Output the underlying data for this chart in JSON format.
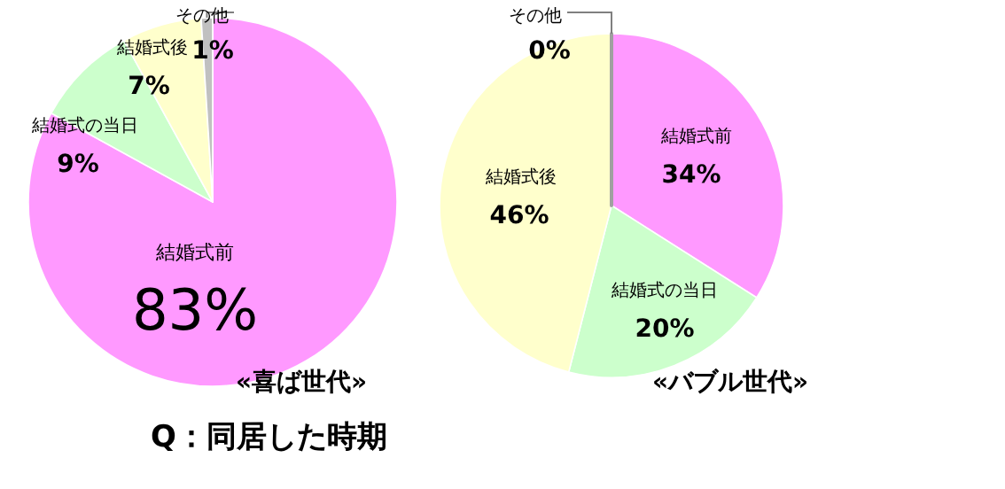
{
  "chart_data": [
    {
      "type": "pie",
      "title": "«喜ば世代»",
      "categories": [
        "結婚式前",
        "結婚式の当日",
        "結婚式後",
        "その他"
      ],
      "values": [
        83,
        9,
        7,
        1
      ],
      "value_labels": [
        "83%",
        "9%",
        "7%",
        "1%"
      ],
      "colors": [
        "#ff99ff",
        "#ccffcc",
        "#ffffcc",
        "#c0c0c0"
      ],
      "annotations": [
        "Q：同居した時期"
      ]
    },
    {
      "type": "pie",
      "title": "«バブル世代»",
      "categories": [
        "結婚式前",
        "結婚式の当日",
        "結婚式後",
        "その他"
      ],
      "values": [
        34,
        20,
        46,
        0
      ],
      "value_labels": [
        "34%",
        "20%",
        "46%",
        "0%"
      ],
      "colors": [
        "#ff99ff",
        "#ccffcc",
        "#ffffcc",
        "#c0c0c0"
      ]
    }
  ]
}
